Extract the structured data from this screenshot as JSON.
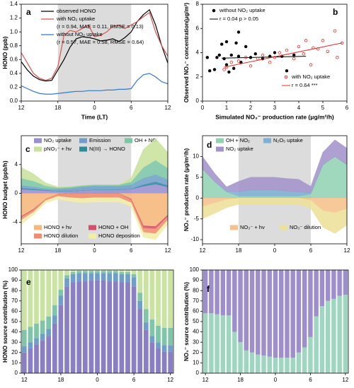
{
  "chart_data": [
    {
      "type": "line",
      "label": "a",
      "xlabel": "Time (LT)",
      "ylabel": "HONO (ppb)",
      "x": [
        12,
        13,
        14,
        15,
        16,
        17,
        18,
        19,
        20,
        21,
        22,
        23,
        24,
        25,
        26,
        27,
        28,
        29,
        30,
        31,
        32,
        33,
        34,
        35,
        36
      ],
      "xlim": [
        12,
        36
      ],
      "xticks": [
        12,
        18,
        {
          "value": 24,
          "label": "0"
        },
        {
          "value": 30,
          "label": "6"
        },
        {
          "value": 36,
          "label": "12"
        }
      ],
      "ylim": [
        0,
        1.4
      ],
      "yticks": [
        {
          "value": 0,
          "label": "0.0"
        },
        0.2,
        0.4,
        0.6,
        0.8,
        {
          "value": 1,
          "label": "1.0"
        },
        1.2,
        1.4
      ],
      "shaded_xrange": [
        18,
        30
      ],
      "series": [
        {
          "name": "observed HONO",
          "color": "#000000",
          "values": [
            0.57,
            0.45,
            0.36,
            0.31,
            0.29,
            0.3,
            0.45,
            0.6,
            0.78,
            0.9,
            0.93,
            0.92,
            0.9,
            0.87,
            0.88,
            0.9,
            0.86,
            0.92,
            1.0,
            1.15,
            1.25,
            1.32,
            1.1,
            0.8,
            0.55
          ]
        },
        {
          "name": "with NO₂ uptake",
          "stats": "(r = 0.94, MAE = 0.11, RMSE = 0.13)",
          "color": "#d9534f",
          "values": [
            0.7,
            0.55,
            0.4,
            0.33,
            0.3,
            0.33,
            0.5,
            0.95,
            1.02,
            1.0,
            1.05,
            1.1,
            0.93,
            0.95,
            1.0,
            1.08,
            1.1,
            1.05,
            1.1,
            1.15,
            1.22,
            1.28,
            1.0,
            0.8,
            0.65
          ]
        },
        {
          "name": "without NO₂ uptake",
          "stats": "(r = 0.57, MAE = 0.58, RMSE = 0.64)",
          "color": "#3a78c2",
          "values": [
            0.22,
            0.18,
            0.14,
            0.11,
            0.1,
            0.1,
            0.11,
            0.12,
            0.13,
            0.14,
            0.14,
            0.15,
            0.15,
            0.15,
            0.16,
            0.16,
            0.17,
            0.17,
            0.18,
            0.3,
            0.38,
            0.4,
            0.35,
            0.28,
            0.25
          ]
        }
      ]
    },
    {
      "type": "scatter",
      "label": "b",
      "xlabel": "Simulated NO₃⁻ production rate (μg/m³/h)",
      "ylabel": "Observed NO₃⁻ concentration(μg/m³)",
      "xlim": [
        0,
        6
      ],
      "xticks": [
        0,
        1,
        2,
        3,
        4,
        5,
        6
      ],
      "ylim": [
        0,
        8
      ],
      "yticks": [
        0,
        2,
        4,
        6,
        8
      ],
      "series": [
        {
          "name": "without NO₂ uptake",
          "stats": "r = 0.04 p > 0.05",
          "color": "#000000",
          "marker": "filled",
          "x": [
            0.3,
            0.5,
            0.6,
            0.7,
            0.8,
            0.9,
            1.0,
            1.0,
            1.1,
            1.2,
            1.4,
            1.5,
            1.5,
            1.6,
            1.8,
            2.0,
            2.2,
            2.5,
            2.8,
            3.0,
            3.3,
            3.5,
            3.8,
            1.3,
            0.2
          ],
          "values": [
            2.5,
            2.6,
            3.6,
            3.8,
            4.7,
            3.5,
            4.9,
            3.0,
            2.4,
            3.8,
            4.8,
            5.7,
            3.7,
            3.2,
            4.5,
            3.6,
            3.9,
            3.5,
            3.7,
            4.0,
            3.7,
            2.5,
            3.8,
            2.7,
            3.6
          ],
          "fit": {
            "x": [
              0.8,
              4.3
            ],
            "values": [
              3.55,
              3.7
            ]
          }
        },
        {
          "name": "with NO₂ uptake",
          "stats": "r = 0.64 ***",
          "color": "#e0302a",
          "marker": "open",
          "x": [
            0.9,
            1.0,
            1.2,
            1.5,
            1.8,
            2.0,
            2.3,
            2.5,
            2.8,
            3.0,
            3.2,
            3.5,
            3.8,
            4.0,
            4.2,
            4.5,
            4.6,
            4.8,
            5.0,
            5.2,
            5.5,
            5.8,
            5.6,
            4.3
          ],
          "values": [
            2.6,
            2.8,
            3.2,
            3.3,
            3.6,
            2.9,
            3.5,
            3.8,
            3.2,
            3.6,
            4.0,
            4.2,
            3.5,
            4.5,
            3.9,
            3.0,
            4.4,
            4.3,
            5.0,
            4.1,
            5.8,
            4.8,
            3.6,
            5.0
          ],
          "fit": {
            "x": [
              0.9,
              5.8
            ],
            "values": [
              2.8,
              4.8
            ]
          }
        }
      ]
    },
    {
      "type": "area",
      "label": "c",
      "ylabel": "HONO budget (ppb/h)",
      "x": [
        12,
        14,
        16,
        18,
        20,
        22,
        24,
        26,
        28,
        30,
        32,
        34,
        36
      ],
      "xlim": [
        12,
        36
      ],
      "xticks": [
        12,
        18,
        {
          "value": 24,
          "label": "0"
        },
        {
          "value": 30,
          "label": "6"
        },
        {
          "value": 36,
          "label": "12"
        }
      ],
      "ylim": [
        -7,
        8
      ],
      "yticks": [
        -4,
        0,
        4
      ],
      "shaded_xrange": [
        18,
        30
      ],
      "series": [
        {
          "name": "NO₂ uptake",
          "color": "#9a8fd0",
          "values": [
            0.6,
            0.5,
            0.4,
            0.3,
            0.3,
            0.4,
            0.5,
            0.5,
            0.5,
            0.6,
            1.0,
            1.3,
            0.9
          ]
        },
        {
          "name": "N(III) → HONO",
          "color": "#2e8b9a",
          "values": [
            0.1,
            0.1,
            0.05,
            0,
            0,
            0,
            0,
            0,
            0,
            0,
            0.2,
            0.3,
            0.2
          ]
        },
        {
          "name": "Emission",
          "color": "#6f9fc8",
          "values": [
            0.4,
            0.3,
            0.2,
            0.3,
            0.4,
            0.5,
            0.5,
            0.5,
            0.5,
            0.6,
            0.9,
            1.0,
            0.8
          ]
        },
        {
          "name": "OH + NO",
          "color": "#7cc6a6",
          "values": [
            1.0,
            0.8,
            0.4,
            0.2,
            0.2,
            0.2,
            0.2,
            0.2,
            0.2,
            0.4,
            1.5,
            2.0,
            1.6
          ]
        },
        {
          "name": "pNO₃⁻ + hν",
          "color": "#c8e29c",
          "values": [
            1.5,
            1.0,
            0.4,
            0.1,
            0,
            0,
            0,
            0,
            0,
            0.5,
            2.5,
            3.0,
            2.2
          ]
        },
        {
          "name": "HONO + hν",
          "color": "#f6b77a",
          "values": [
            -3.2,
            -2.2,
            -0.8,
            -0.1,
            0,
            0,
            0,
            0,
            0,
            -0.8,
            -4.5,
            -4.6,
            -3.0
          ]
        },
        {
          "name": "HONO + OH",
          "color": "#d4506a",
          "values": [
            -0.1,
            -0.1,
            0,
            0,
            0,
            0,
            0,
            0,
            0,
            -0.1,
            -0.3,
            -0.3,
            -0.2
          ]
        },
        {
          "name": "HONO dilution",
          "color": "#f08d6e",
          "values": [
            -0.4,
            -0.3,
            -0.2,
            -0.3,
            -0.6,
            -0.7,
            -0.6,
            -0.6,
            -0.6,
            -0.4,
            -0.6,
            -0.7,
            -0.5
          ]
        },
        {
          "name": "HONO deposition",
          "color": "#f2eea8",
          "values": [
            -0.6,
            -0.4,
            -0.3,
            -0.4,
            -0.5,
            -0.6,
            -0.6,
            -0.6,
            -0.6,
            -0.5,
            -0.7,
            -0.8,
            -0.6
          ]
        }
      ]
    },
    {
      "type": "area",
      "label": "d",
      "ylabel": "NO₃⁻ production rate (μg/m³/h)",
      "x": [
        12,
        14,
        16,
        18,
        20,
        22,
        24,
        26,
        28,
        30,
        32,
        34,
        36
      ],
      "xlim": [
        12,
        36
      ],
      "xticks": [
        12,
        18,
        {
          "value": 24,
          "label": "0"
        },
        {
          "value": 30,
          "label": "6"
        },
        {
          "value": 36,
          "label": "12"
        }
      ],
      "ylim": [
        -11,
        15
      ],
      "yticks": [
        -10,
        -5,
        0,
        5,
        10
      ],
      "shaded_xrange": [
        18,
        30
      ],
      "series": [
        {
          "name": "OH + NO₂",
          "color": "#93d3b4",
          "values": [
            7,
            4,
            1.5,
            0.5,
            0.5,
            0.5,
            0.5,
            0.5,
            0.5,
            1,
            8,
            10,
            8
          ]
        },
        {
          "name": "N₂O₅ uptake",
          "color": "#7db0d3",
          "values": [
            0,
            0,
            0.2,
            1,
            1.5,
            1.5,
            1.5,
            1.2,
            1,
            0.3,
            0,
            0,
            0
          ]
        },
        {
          "name": "NO₂ uptake",
          "color": "#a394cc",
          "values": [
            3,
            2,
            1,
            2.5,
            3,
            3,
            3,
            3,
            3,
            1.5,
            3,
            4,
            4
          ]
        },
        {
          "name": "NO₃⁻ + hν",
          "color": "#f6c18c",
          "values": [
            -2,
            -1.2,
            -0.3,
            0,
            0,
            0,
            0,
            0,
            0,
            -0.5,
            -3,
            -3.5,
            -2.5
          ]
        },
        {
          "name": "NO₃⁻ dilution",
          "color": "#ede099",
          "values": [
            -3,
            -2.5,
            -2,
            -1.5,
            -1.5,
            -1.5,
            -1.5,
            -1.5,
            -1.5,
            -2,
            -4,
            -5,
            -4
          ]
        }
      ]
    },
    {
      "type": "bar",
      "label": "e",
      "ylabel": "HONO source contribution (%)",
      "x": [
        12,
        13,
        14,
        15,
        16,
        17,
        18,
        19,
        20,
        21,
        22,
        23,
        24,
        25,
        26,
        27,
        28,
        29,
        30,
        31,
        32,
        33,
        34,
        35,
        36
      ],
      "xlim": [
        11.5,
        36.5
      ],
      "xticks": [
        12,
        18,
        {
          "value": 24,
          "label": "0"
        },
        {
          "value": 30,
          "label": "6"
        },
        {
          "value": 36,
          "label": "12"
        }
      ],
      "ylim": [
        0,
        100
      ],
      "yticks": [
        0,
        10,
        20,
        30,
        40,
        50,
        60,
        70,
        80,
        90,
        100
      ],
      "series": [
        {
          "color": "#8a7fc4",
          "values": [
            20,
            24,
            28,
            32,
            36,
            48,
            66,
            84,
            88,
            89,
            89,
            90,
            90,
            90,
            89,
            89,
            88,
            88,
            84,
            62,
            42,
            30,
            24,
            21,
            21
          ]
        },
        {
          "color": "#6f9fc8",
          "values": [
            6,
            6,
            6,
            6,
            7,
            8,
            9,
            8,
            8,
            8,
            8,
            7,
            7,
            7,
            8,
            8,
            8,
            8,
            9,
            8,
            7,
            6,
            6,
            6,
            6
          ]
        },
        {
          "color": "#7fc6a8",
          "values": [
            16,
            15,
            14,
            13,
            12,
            10,
            6,
            3,
            2,
            2,
            2,
            2,
            2,
            2,
            2,
            2,
            2,
            2,
            3,
            8,
            13,
            16,
            16,
            17,
            17
          ]
        },
        {
          "color": "#c9e3a0",
          "values": [
            58,
            55,
            52,
            49,
            45,
            34,
            19,
            5,
            2,
            1,
            1,
            1,
            1,
            1,
            1,
            1,
            2,
            2,
            4,
            22,
            38,
            48,
            54,
            56,
            56
          ]
        }
      ]
    },
    {
      "type": "bar",
      "label": "f",
      "ylabel": "NO₃⁻ source contribution (%)",
      "x": [
        12,
        13,
        14,
        15,
        16,
        17,
        18,
        19,
        20,
        21,
        22,
        23,
        24,
        25,
        26,
        27,
        28,
        29,
        30,
        31,
        32,
        33,
        34,
        35,
        36
      ],
      "xlim": [
        11.5,
        36.5
      ],
      "xticks": [
        12,
        18,
        {
          "value": 24,
          "label": "0"
        },
        {
          "value": 30,
          "label": "6"
        },
        {
          "value": 36,
          "label": "12"
        }
      ],
      "ylim": [
        0,
        100
      ],
      "yticks": [
        0,
        10,
        20,
        30,
        40,
        50,
        60,
        70,
        80,
        90,
        100
      ],
      "series": [
        {
          "color": "#9fd6bf",
          "values": [
            58,
            58,
            57,
            56,
            56,
            40,
            30,
            22,
            20,
            18,
            17,
            16,
            15,
            15,
            15,
            15,
            20,
            25,
            35,
            55,
            65,
            70,
            72,
            75,
            76
          ]
        },
        {
          "color": "#9d8fcb",
          "values": [
            42,
            42,
            43,
            44,
            44,
            60,
            70,
            78,
            80,
            82,
            83,
            84,
            85,
            85,
            85,
            85,
            80,
            75,
            65,
            45,
            35,
            30,
            28,
            25,
            24
          ]
        }
      ]
    }
  ]
}
